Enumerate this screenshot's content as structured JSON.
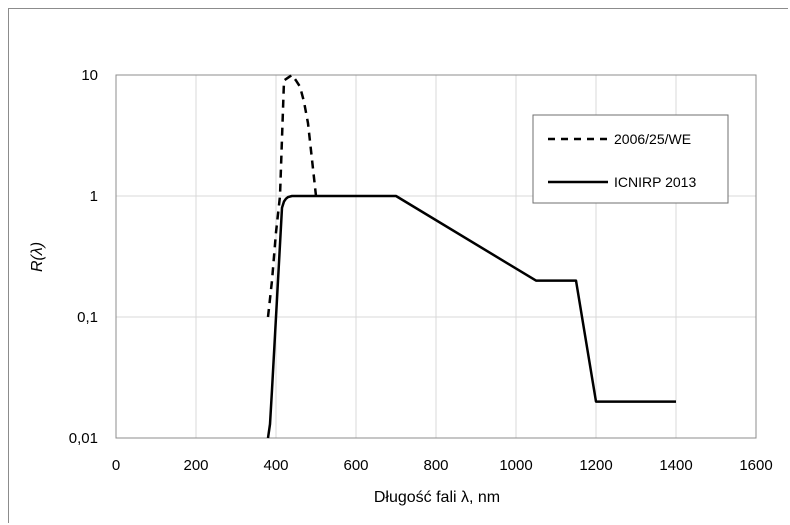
{
  "chart_data": {
    "type": "line",
    "xlabel": "Długość fali λ, nm",
    "ylabel": "R(λ)",
    "xlim": [
      0,
      1600
    ],
    "ylim": [
      0.01,
      10
    ],
    "yscale": "log",
    "grid": true,
    "legend_position": "top-right",
    "x_ticks": [
      "0",
      "200",
      "400",
      "600",
      "800",
      "1000",
      "1200",
      "1400",
      "1600"
    ],
    "y_ticks": [
      "0,01",
      "0,1",
      "1",
      "10"
    ],
    "series": [
      {
        "name": "2006/25/WE",
        "style": "dashed",
        "color": "#000000",
        "points": [
          [
            380,
            0.1
          ],
          [
            390,
            0.2
          ],
          [
            400,
            0.5
          ],
          [
            410,
            1.0
          ],
          [
            420,
            9.0
          ],
          [
            430,
            9.5
          ],
          [
            440,
            10.0
          ],
          [
            450,
            9.0
          ],
          [
            460,
            8.0
          ],
          [
            470,
            6.0
          ],
          [
            480,
            4.0
          ],
          [
            490,
            2.0
          ],
          [
            500,
            1.0
          ]
        ]
      },
      {
        "name": "ICNIRP 2013",
        "style": "solid",
        "color": "#000000",
        "points": [
          [
            380,
            0.01
          ],
          [
            385,
            0.013
          ],
          [
            390,
            0.025
          ],
          [
            395,
            0.05
          ],
          [
            400,
            0.1
          ],
          [
            405,
            0.2
          ],
          [
            410,
            0.4
          ],
          [
            415,
            0.8
          ],
          [
            420,
            0.9
          ],
          [
            425,
            0.95
          ],
          [
            430,
            0.98
          ],
          [
            440,
            1.0
          ],
          [
            700,
            1.0
          ],
          [
            1050,
            0.2
          ],
          [
            1150,
            0.2
          ],
          [
            1200,
            0.02
          ],
          [
            1400,
            0.02
          ]
        ]
      }
    ]
  }
}
